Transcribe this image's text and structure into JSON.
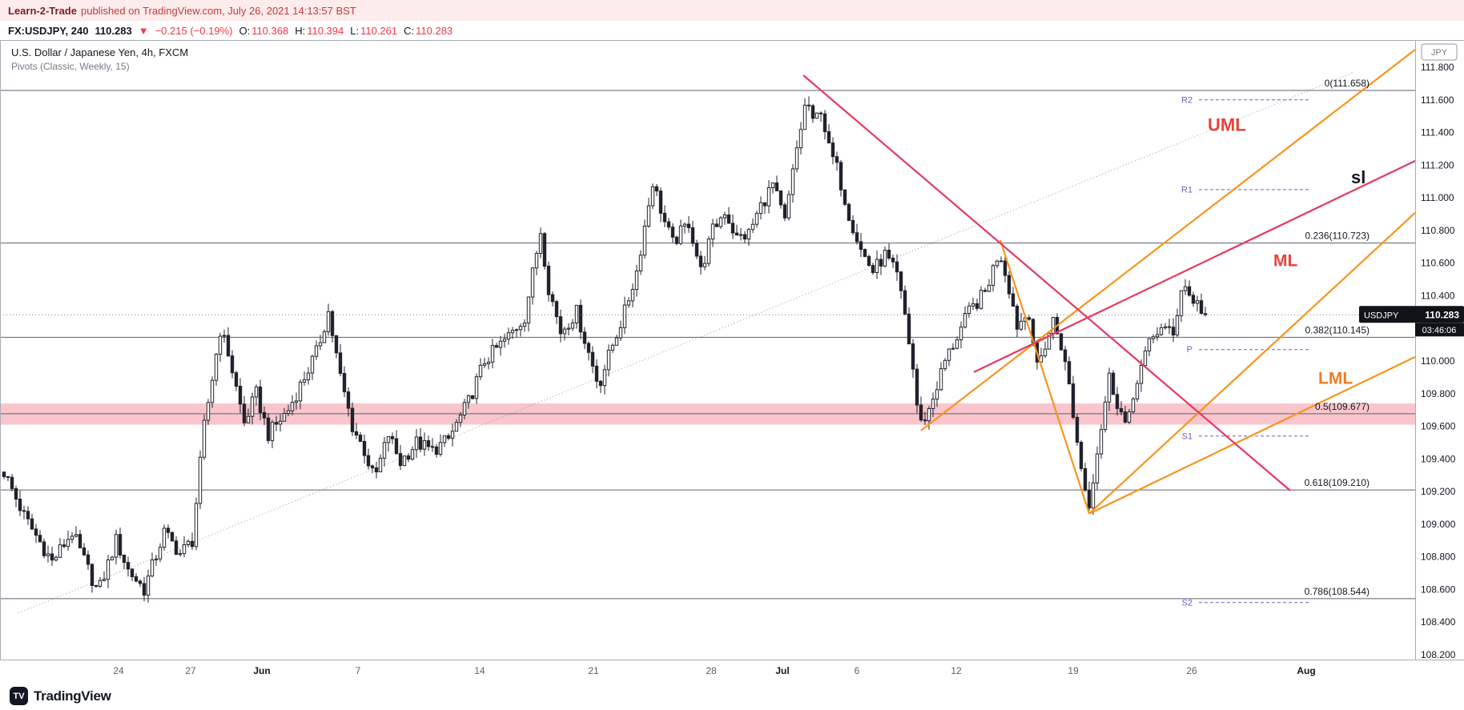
{
  "publisher_bar": {
    "author": "Learn-2-Trade",
    "text": "published on TradingView.com, July 26, 2021 14:13:57 BST"
  },
  "symbol_bar": {
    "symbol": "FX:USDJPY, 240",
    "price": "110.283",
    "direction": "▼",
    "change": "−0.215 (−0.19%)",
    "ohlc": [
      {
        "label": "O:",
        "value": "110.368"
      },
      {
        "label": "H:",
        "value": "110.394"
      },
      {
        "label": "L:",
        "value": "110.261"
      },
      {
        "label": "C:",
        "value": "110.283"
      }
    ]
  },
  "chart_header": {
    "title": "U.S. Dollar / Japanese Yen, 4h, FXCM",
    "indicator": "Pivots (Classic, Weekly, 15)"
  },
  "price_label": {
    "symbol": "USDJPY",
    "price": "110.283",
    "countdown": "03:46:06"
  },
  "currency_badge": "JPY",
  "footer": {
    "brand": "TradingView",
    "logo_glyph": "TV"
  },
  "chart_data": {
    "type": "candlestick",
    "symbol": "USDJPY",
    "timeframe": "4h",
    "title": "U.S. Dollar / Japanese Yen, 4h, FXCM",
    "ylim": [
      108.2,
      111.8
    ],
    "num_candles": 301,
    "noise": 0.09,
    "wick": 0.055,
    "hi_cap": 111.658,
    "lo_cap": 108.52,
    "current_price": 110.283,
    "colors": {
      "up": "#ffffff",
      "down": "#20222c",
      "border": "#20222c",
      "wick": "#20222c",
      "accent_red": "#f23645",
      "orange": "#f7941e",
      "magenta": "#e53960",
      "pivot": "#7E57C2",
      "fib_line": "#5d6069",
      "grid_border": "#a9acb5"
    },
    "price_ticks": [
      "111.800",
      "111.600",
      "111.400",
      "111.200",
      "111.000",
      "110.800",
      "110.600",
      "110.400",
      "110.200",
      "110.000",
      "109.800",
      "109.600",
      "109.400",
      "109.200",
      "109.000",
      "108.800",
      "108.600",
      "108.400",
      "108.200"
    ],
    "time_ticks": [
      {
        "label": "24",
        "k": 28.6
      },
      {
        "label": "27",
        "k": 46.6
      },
      {
        "label": "Jun",
        "k": 64.4
      },
      {
        "label": "7",
        "k": 88.4
      },
      {
        "label": "14",
        "k": 118.8
      },
      {
        "label": "21",
        "k": 147.2
      },
      {
        "label": "28",
        "k": 176.6
      },
      {
        "label": "Jul",
        "k": 194.4
      },
      {
        "label": "6",
        "k": 213
      },
      {
        "label": "12",
        "k": 237.8
      },
      {
        "label": "19",
        "k": 267
      },
      {
        "label": "26",
        "k": 296.6
      },
      {
        "label": "Aug",
        "k": 325.2
      }
    ],
    "fib_levels": [
      {
        "display": "0(111.658)",
        "price": 111.658
      },
      {
        "display": "0.236(110.723)",
        "price": 110.723
      },
      {
        "display": "0.382(110.145)",
        "price": 110.145
      },
      {
        "display": "0.5(109.677)",
        "price": 109.677
      },
      {
        "display": "0.618(109.210)",
        "price": 109.21
      },
      {
        "display": "0.786(108.544)",
        "price": 108.544
      }
    ],
    "pivot_levels": [
      {
        "label": "R2",
        "price": 111.6
      },
      {
        "label": "R1",
        "price": 111.05
      },
      {
        "label": "P",
        "price": 110.07
      },
      {
        "label": "S1",
        "price": 109.54
      },
      {
        "label": "S2",
        "price": 108.52
      }
    ],
    "zone": {
      "from": 109.61,
      "to": 109.74,
      "color": "rgba(240,128,142,0.45)"
    },
    "trendlines": [
      {
        "name": "dotted-uptrend-line",
        "color": "#9598a1",
        "width": 1,
        "dash": "1,3",
        "behind": true,
        "from": [
          3.6,
          108.456
        ],
        "to": [
          336.8,
          111.766
        ]
      },
      {
        "name": "pitchfork-upper-median-line",
        "color": "#f7941e",
        "width": 2.2,
        "from": [
          229,
          109.574
        ],
        "to": [
          352.4,
          111.908
        ]
      },
      {
        "name": "pitchfork-handle-line",
        "color": "#f7941e",
        "width": 2.2,
        "from": [
          248.8,
          110.741
        ],
        "to": [
          271,
          109.065
        ]
      },
      {
        "name": "pitchfork-median-line",
        "color": "#f7941e",
        "width": 2.2,
        "from": [
          271,
          109.065
        ],
        "to": [
          352.4,
          110.908
        ]
      },
      {
        "name": "pitchfork-lower-median-line",
        "color": "#f7941e",
        "width": 2.2,
        "from": [
          271,
          109.065
        ],
        "to": [
          352.4,
          110.025
        ]
      },
      {
        "name": "bearish-trendline",
        "color": "#e53960",
        "width": 2.2,
        "from": [
          199.6,
          111.751
        ],
        "to": [
          321.2,
          109.206
        ]
      },
      {
        "name": "bullish-trendline",
        "color": "#e53960",
        "width": 2.2,
        "from": [
          242.2,
          109.932
        ],
        "to": [
          352.4,
          111.226
        ]
      }
    ],
    "text_labels": [
      {
        "text": "UML",
        "k": 300.6,
        "p": 111.41,
        "color": "#e8433a",
        "size": 22
      },
      {
        "text": "sl",
        "k": 336.4,
        "p": 111.09,
        "color": "#131722",
        "size": 22
      },
      {
        "text": "ML",
        "k": 317.0,
        "p": 110.58,
        "color": "#e8433a",
        "size": 21
      },
      {
        "text": "LML",
        "k": 328.2,
        "p": 109.86,
        "color": "#ef7d21",
        "size": 21
      }
    ],
    "price_path_anchors": [
      [
        0,
        109.32
      ],
      [
        5,
        109.05
      ],
      [
        12,
        108.77
      ],
      [
        17,
        108.95
      ],
      [
        23.5,
        108.58
      ],
      [
        28,
        108.9
      ],
      [
        31,
        108.72
      ],
      [
        35,
        108.6
      ],
      [
        40,
        108.95
      ],
      [
        44,
        108.82
      ],
      [
        47,
        108.9
      ],
      [
        50,
        109.6
      ],
      [
        54,
        110.19
      ],
      [
        56,
        110.05
      ],
      [
        60,
        109.62
      ],
      [
        63,
        109.8
      ],
      [
        66,
        109.55
      ],
      [
        71,
        109.7
      ],
      [
        75,
        109.9
      ],
      [
        78,
        110.05
      ],
      [
        81,
        110.3
      ],
      [
        84,
        109.9
      ],
      [
        87,
        109.6
      ],
      [
        90,
        109.45
      ],
      [
        92.5,
        109.27
      ],
      [
        96,
        109.55
      ],
      [
        99,
        109.38
      ],
      [
        103,
        109.5
      ],
      [
        107,
        109.45
      ],
      [
        111,
        109.52
      ],
      [
        116,
        109.75
      ],
      [
        120,
        110.0
      ],
      [
        126,
        110.15
      ],
      [
        130,
        110.27
      ],
      [
        134,
        110.8
      ],
      [
        136,
        110.45
      ],
      [
        139,
        110.18
      ],
      [
        143,
        110.3
      ],
      [
        146,
        110.05
      ],
      [
        148.5,
        109.85
      ],
      [
        152,
        110.1
      ],
      [
        155,
        110.3
      ],
      [
        158,
        110.55
      ],
      [
        162,
        111.1
      ],
      [
        165,
        110.85
      ],
      [
        167,
        110.72
      ],
      [
        171,
        110.85
      ],
      [
        174,
        110.55
      ],
      [
        177,
        110.8
      ],
      [
        180,
        110.92
      ],
      [
        183,
        110.75
      ],
      [
        186,
        110.78
      ],
      [
        189,
        110.95
      ],
      [
        192,
        111.08
      ],
      [
        195,
        110.85
      ],
      [
        198,
        111.3
      ],
      [
        200.5,
        111.62
      ],
      [
        202,
        111.45
      ],
      [
        204,
        111.55
      ],
      [
        206,
        111.3
      ],
      [
        208,
        111.18
      ],
      [
        211,
        110.9
      ],
      [
        214,
        110.68
      ],
      [
        217,
        110.55
      ],
      [
        220,
        110.65
      ],
      [
        223,
        110.52
      ],
      [
        225,
        110.28
      ],
      [
        227,
        109.95
      ],
      [
        228.6,
        109.6
      ],
      [
        231,
        109.7
      ],
      [
        235,
        110.0
      ],
      [
        238,
        110.15
      ],
      [
        241,
        110.3
      ],
      [
        245,
        110.42
      ],
      [
        248.6,
        110.68
      ],
      [
        251,
        110.45
      ],
      [
        253,
        110.22
      ],
      [
        256,
        110.3
      ],
      [
        258,
        109.95
      ],
      [
        260,
        110.1
      ],
      [
        262,
        110.25
      ],
      [
        264,
        110.1
      ],
      [
        266,
        109.85
      ],
      [
        268,
        109.5
      ],
      [
        270.8,
        109.1
      ],
      [
        273,
        109.45
      ],
      [
        276,
        109.9
      ],
      [
        278,
        109.75
      ],
      [
        280.5,
        109.58
      ],
      [
        283,
        109.9
      ],
      [
        286,
        110.1
      ],
      [
        289,
        110.22
      ],
      [
        292,
        110.15
      ],
      [
        294.3,
        110.5
      ],
      [
        296,
        110.4
      ],
      [
        298,
        110.35
      ],
      [
        300,
        110.283
      ]
    ]
  }
}
